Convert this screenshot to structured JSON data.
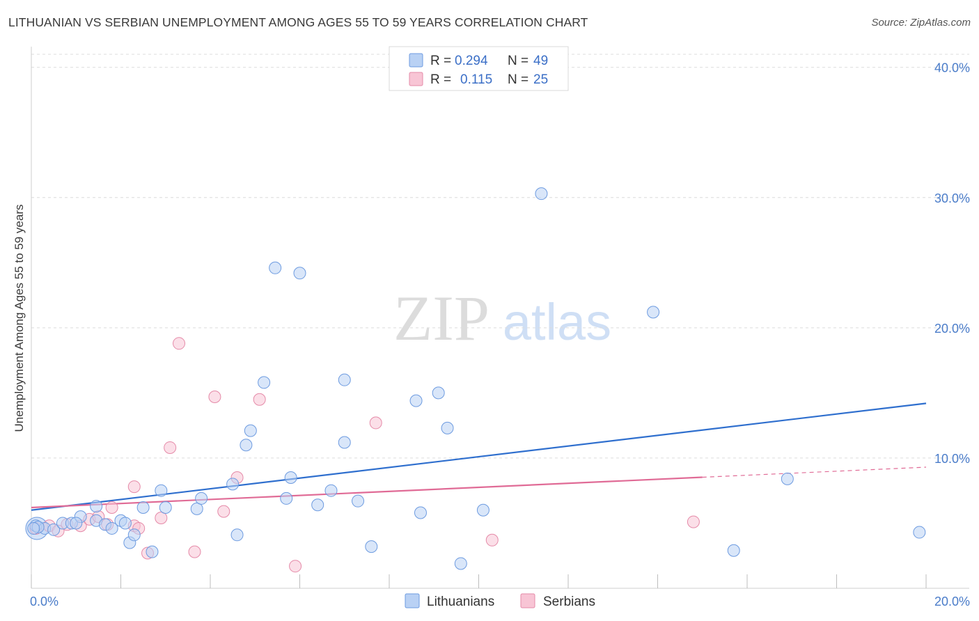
{
  "title": "LITHUANIAN VS SERBIAN UNEMPLOYMENT AMONG AGES 55 TO 59 YEARS CORRELATION CHART",
  "source": "Source: ZipAtlas.com",
  "watermark": {
    "zip": "ZIP",
    "atlas": "atlas"
  },
  "colors": {
    "lithuanians_fill": "#b9d1f4",
    "lithuanians_stroke": "#6d9be0",
    "lithuanians_line": "#2f6fce",
    "serbians_fill": "#f8c5d5",
    "serbians_stroke": "#e58aa8",
    "serbians_line": "#e06b96",
    "grid": "#dcdcdc",
    "tick_text": "#4a7cc9"
  },
  "legend": {
    "rows": [
      {
        "r_label": "R =",
        "r_value": "0.294",
        "n_label": "N =",
        "n_value": "49"
      },
      {
        "r_label": "R =",
        "r_value": "0.115",
        "n_label": "N =",
        "n_value": "25"
      }
    ]
  },
  "chart_data": {
    "type": "scatter",
    "title": "LITHUANIAN VS SERBIAN UNEMPLOYMENT AMONG AGES 55 TO 59 YEARS CORRELATION CHART",
    "xlabel": "",
    "ylabel": "Unemployment Among Ages 55 to 59 years",
    "xlim": [
      0,
      20
    ],
    "ylim": [
      0,
      41
    ],
    "x_tick_labels": [
      {
        "value": 0,
        "label": "0.0%"
      },
      {
        "value": 20,
        "label": "20.0%"
      }
    ],
    "y_tick_labels": [
      {
        "value": 10,
        "label": "10.0%"
      },
      {
        "value": 20,
        "label": "20.0%"
      },
      {
        "value": 30,
        "label": "30.0%"
      },
      {
        "value": 40,
        "label": "40.0%"
      }
    ],
    "series": [
      {
        "name": "Lithuanians",
        "r": 0.294,
        "n": 49,
        "trend": {
          "x": [
            0,
            20
          ],
          "y": [
            6.0,
            14.2
          ],
          "dashed_from": null
        },
        "points": [
          [
            0.1,
            4.8
          ],
          [
            0.3,
            4.6
          ],
          [
            0.5,
            4.5
          ],
          [
            0.7,
            5.0
          ],
          [
            0.9,
            5.0
          ],
          [
            1.1,
            5.5
          ],
          [
            1.45,
            5.2
          ],
          [
            1.45,
            6.3
          ],
          [
            1.65,
            4.9
          ],
          [
            1.8,
            4.6
          ],
          [
            2.0,
            5.2
          ],
          [
            2.1,
            5.0
          ],
          [
            2.2,
            3.5
          ],
          [
            2.3,
            4.1
          ],
          [
            2.5,
            6.2
          ],
          [
            2.7,
            2.8
          ],
          [
            2.9,
            7.5
          ],
          [
            3.0,
            6.2
          ],
          [
            3.7,
            6.1
          ],
          [
            3.8,
            6.9
          ],
          [
            4.5,
            8.0
          ],
          [
            4.8,
            11.0
          ],
          [
            4.9,
            12.1
          ],
          [
            4.6,
            4.1
          ],
          [
            5.2,
            15.8
          ],
          [
            5.45,
            24.6
          ],
          [
            5.7,
            6.9
          ],
          [
            5.8,
            8.5
          ],
          [
            6.0,
            24.2
          ],
          [
            6.4,
            6.4
          ],
          [
            6.7,
            7.5
          ],
          [
            7.0,
            16.0
          ],
          [
            7.0,
            11.2
          ],
          [
            7.3,
            6.7
          ],
          [
            7.6,
            3.2
          ],
          [
            8.6,
            14.4
          ],
          [
            8.7,
            5.8
          ],
          [
            9.1,
            15.0
          ],
          [
            9.3,
            12.3
          ],
          [
            9.6,
            1.9
          ],
          [
            10.1,
            6.0
          ],
          [
            11.4,
            30.3
          ],
          [
            13.9,
            21.2
          ],
          [
            15.7,
            2.9
          ],
          [
            16.9,
            8.4
          ],
          [
            19.85,
            4.3
          ],
          [
            0.15,
            4.7
          ],
          [
            0.05,
            4.6
          ],
          [
            1.0,
            5.0
          ]
        ]
      },
      {
        "name": "Serbians",
        "r": 0.115,
        "n": 25,
        "trend": {
          "x": [
            0,
            20
          ],
          "y": [
            6.2,
            9.3
          ],
          "solid_until": 15.0
        },
        "points": [
          [
            0.1,
            4.6
          ],
          [
            0.4,
            4.8
          ],
          [
            0.6,
            4.4
          ],
          [
            0.8,
            4.9
          ],
          [
            1.1,
            4.8
          ],
          [
            1.3,
            5.3
          ],
          [
            1.5,
            5.5
          ],
          [
            1.8,
            6.2
          ],
          [
            1.7,
            4.9
          ],
          [
            2.3,
            4.8
          ],
          [
            2.4,
            4.6
          ],
          [
            2.3,
            7.8
          ],
          [
            2.6,
            2.7
          ],
          [
            2.9,
            5.4
          ],
          [
            3.3,
            18.8
          ],
          [
            3.65,
            2.8
          ],
          [
            4.3,
            5.9
          ],
          [
            4.1,
            14.7
          ],
          [
            4.6,
            8.5
          ],
          [
            5.1,
            14.5
          ],
          [
            3.1,
            10.8
          ],
          [
            5.9,
            1.7
          ],
          [
            7.7,
            12.7
          ],
          [
            10.3,
            3.7
          ],
          [
            14.8,
            5.1
          ]
        ]
      }
    ]
  },
  "bottom_legend": {
    "items": [
      {
        "label": "Lithuanians"
      },
      {
        "label": "Serbians"
      }
    ]
  }
}
